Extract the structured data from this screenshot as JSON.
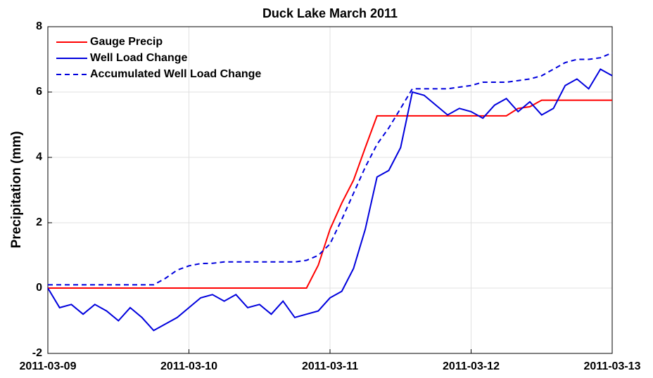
{
  "chart_data": {
    "type": "line",
    "title": "Duck Lake March 2011",
    "ylabel": "Precipitation (mm)",
    "x": [
      "2011-03-09T00:00",
      "2011-03-09T02:00",
      "2011-03-09T04:00",
      "2011-03-09T06:00",
      "2011-03-09T08:00",
      "2011-03-09T10:00",
      "2011-03-09T12:00",
      "2011-03-09T14:00",
      "2011-03-09T16:00",
      "2011-03-09T18:00",
      "2011-03-09T20:00",
      "2011-03-09T22:00",
      "2011-03-10T00:00",
      "2011-03-10T02:00",
      "2011-03-10T04:00",
      "2011-03-10T06:00",
      "2011-03-10T08:00",
      "2011-03-10T10:00",
      "2011-03-10T12:00",
      "2011-03-10T14:00",
      "2011-03-10T16:00",
      "2011-03-10T18:00",
      "2011-03-10T20:00",
      "2011-03-10T22:00",
      "2011-03-11T00:00",
      "2011-03-11T02:00",
      "2011-03-11T04:00",
      "2011-03-11T06:00",
      "2011-03-11T08:00",
      "2011-03-11T10:00",
      "2011-03-11T12:00",
      "2011-03-11T14:00",
      "2011-03-11T16:00",
      "2011-03-11T18:00",
      "2011-03-11T20:00",
      "2011-03-11T22:00",
      "2011-03-12T00:00",
      "2011-03-12T02:00",
      "2011-03-12T04:00",
      "2011-03-12T06:00",
      "2011-03-12T08:00",
      "2011-03-12T10:00",
      "2011-03-12T12:00",
      "2011-03-12T14:00",
      "2011-03-12T16:00",
      "2011-03-12T18:00",
      "2011-03-12T20:00",
      "2011-03-12T22:00",
      "2011-03-13T00:00"
    ],
    "series": [
      {
        "name": "Gauge Precip",
        "color": "#ff0000",
        "dash": false,
        "values": [
          0,
          0,
          0,
          0,
          0,
          0,
          0,
          0,
          0,
          0,
          0,
          0,
          0,
          0,
          0,
          0,
          0,
          0,
          0,
          0,
          0,
          0,
          0,
          0.7,
          1.8,
          2.6,
          3.3,
          4.3,
          5.27,
          5.27,
          5.27,
          5.27,
          5.27,
          5.27,
          5.27,
          5.27,
          5.27,
          5.27,
          5.27,
          5.27,
          5.5,
          5.55,
          5.75,
          5.75,
          5.75,
          5.75,
          5.75,
          5.75,
          5.75
        ]
      },
      {
        "name": "Well Load Change",
        "color": "#0000dd",
        "dash": false,
        "values": [
          0,
          -0.6,
          -0.5,
          -0.8,
          -0.5,
          -0.7,
          -1.0,
          -0.6,
          -0.9,
          -1.3,
          -1.1,
          -0.9,
          -0.6,
          -0.3,
          -0.2,
          -0.4,
          -0.2,
          -0.6,
          -0.5,
          -0.8,
          -0.4,
          -0.9,
          -0.8,
          -0.7,
          -0.3,
          -0.1,
          0.6,
          1.8,
          3.4,
          3.6,
          4.3,
          6.0,
          5.9,
          5.6,
          5.3,
          5.5,
          5.4,
          5.2,
          5.6,
          5.8,
          5.4,
          5.7,
          5.3,
          5.5,
          6.2,
          6.4,
          6.1,
          6.7,
          6.5
        ]
      },
      {
        "name": "Accumulated Well Load Change",
        "color": "#0000dd",
        "dash": true,
        "values": [
          0.1,
          0.1,
          0.1,
          0.1,
          0.1,
          0.1,
          0.1,
          0.1,
          0.1,
          0.1,
          0.3,
          0.55,
          0.68,
          0.75,
          0.76,
          0.8,
          0.8,
          0.8,
          0.8,
          0.8,
          0.8,
          0.8,
          0.85,
          1.0,
          1.35,
          2.1,
          2.9,
          3.7,
          4.4,
          4.9,
          5.5,
          6.1,
          6.1,
          6.1,
          6.1,
          6.15,
          6.2,
          6.3,
          6.3,
          6.3,
          6.35,
          6.4,
          6.5,
          6.7,
          6.9,
          7.0,
          7.0,
          7.05,
          7.2
        ]
      }
    ],
    "xlim": [
      "2011-03-09",
      "2011-03-13"
    ],
    "xticks": [
      "2011-03-09",
      "2011-03-10",
      "2011-03-11",
      "2011-03-12",
      "2011-03-13"
    ],
    "ylim": [
      -2,
      8
    ],
    "yticks": [
      -2,
      0,
      2,
      4,
      6,
      8
    ],
    "grid": true,
    "legend": "upper left"
  }
}
